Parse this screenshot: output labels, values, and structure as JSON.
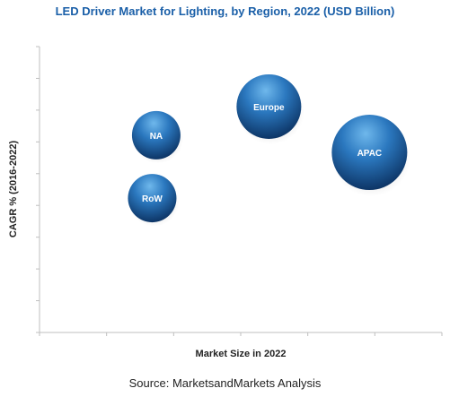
{
  "chart_data": {
    "type": "bubble",
    "title": "LED Driver Market for Lighting, by Region, 2022 (USD Billion)",
    "xlabel": "Market Size in 2022",
    "ylabel": "CAGR % (2016-2022)",
    "xlim": [
      0,
      100
    ],
    "ylim": [
      0,
      100
    ],
    "grid": false,
    "series": [
      {
        "label": "NA",
        "x": 29,
        "y": 69,
        "size": 27
      },
      {
        "label": "Europe",
        "x": 57,
        "y": 79,
        "size": 36
      },
      {
        "label": "APAC",
        "x": 82,
        "y": 63,
        "size": 42
      },
      {
        "label": "RoW",
        "x": 28,
        "y": 47,
        "size": 27
      }
    ]
  },
  "source": "Source:  MarketsandMarkets Analysis"
}
